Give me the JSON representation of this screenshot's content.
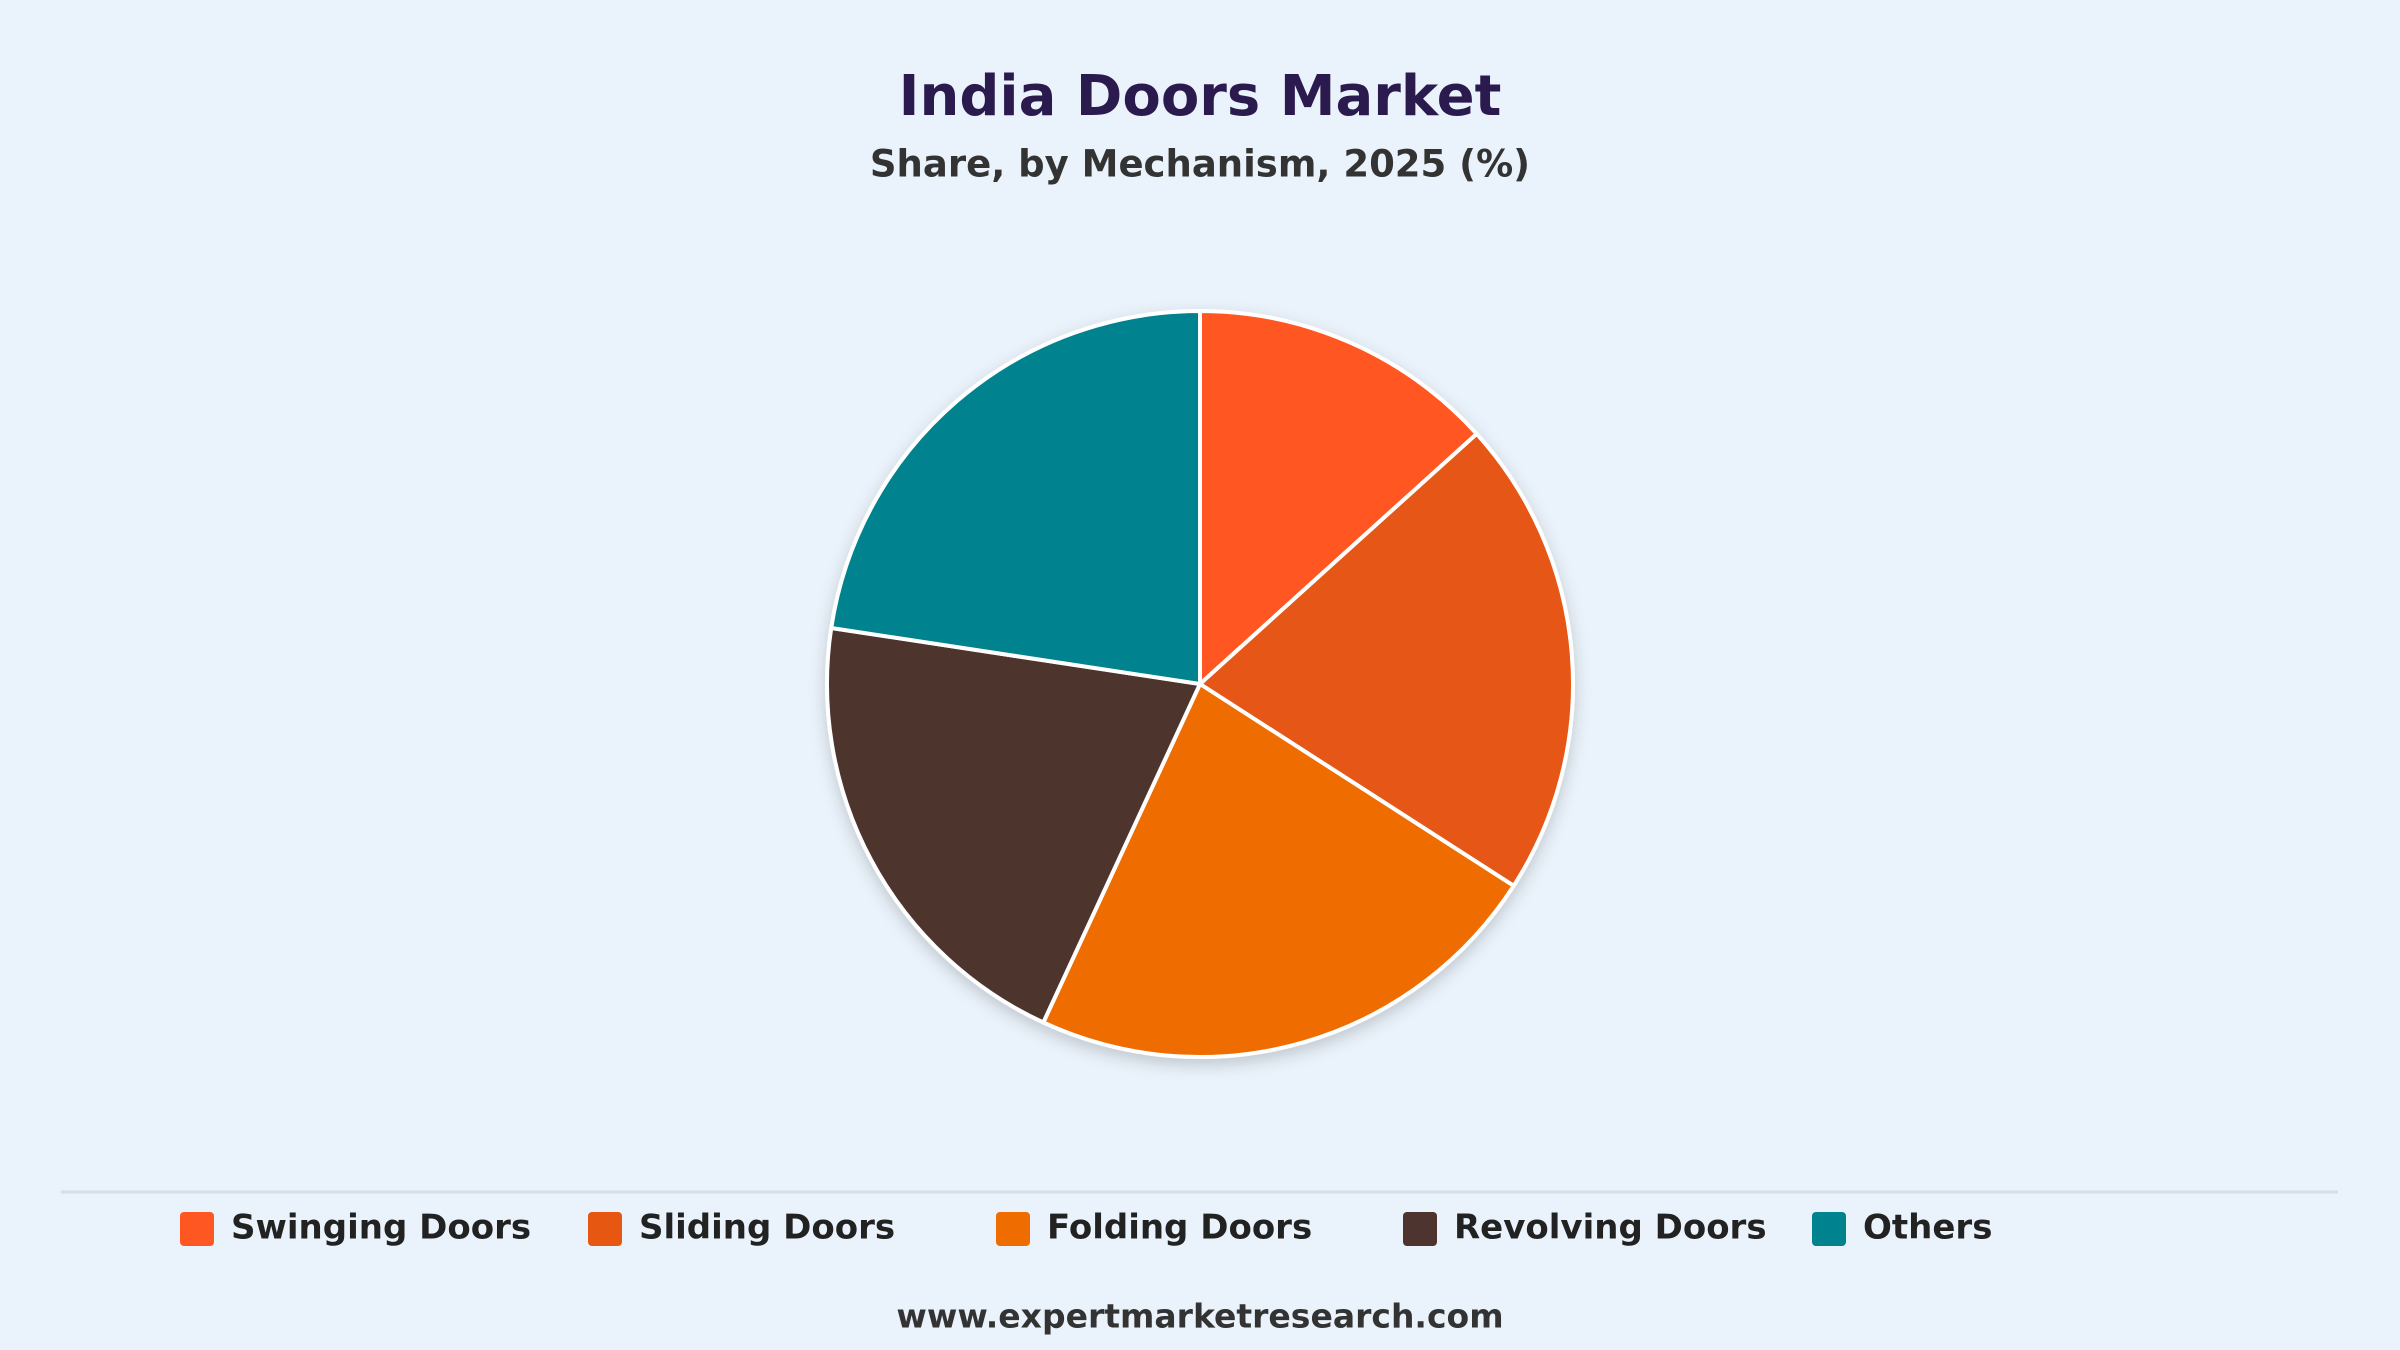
{
  "chart_data": {
    "type": "pie",
    "title": "India Doors Market",
    "subtitle": "Share, by Mechanism, 2025 (%)",
    "categories": [
      "Swinging Doors",
      "Sliding Doors",
      "Folding Doors",
      "Revolving Doors",
      "Others"
    ],
    "values": [
      13.3,
      20.8,
      22.8,
      20.5,
      22.6
    ],
    "colors": [
      "#ff5722",
      "#e65712",
      "#ef6c00",
      "#4e342e",
      "#00838f"
    ],
    "legend": "bottom",
    "source": "www.expertmarketresearch.com"
  }
}
